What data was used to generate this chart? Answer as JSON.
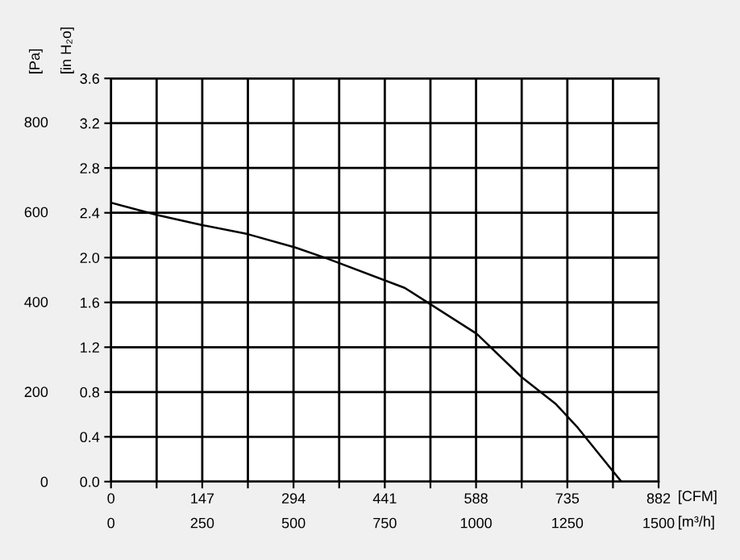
{
  "chart_data": {
    "type": "line",
    "xlabel": "[CFM]",
    "x2label": "[m³/h]",
    "ylabel": "[in H₂o]",
    "y2label": "[Pa]",
    "series": [
      {
        "color": "#000000",
        "x": [
          0,
          74.6,
          147,
          220,
          297,
          349,
          473,
          589,
          662,
          717,
          752,
          822
        ],
        "values": [
          2.49,
          2.38,
          2.29,
          2.21,
          2.09,
          1.99,
          1.73,
          1.32,
          0.93,
          0.69,
          0.48,
          0.0
        ]
      }
    ],
    "xlim": [
      0,
      882
    ],
    "xticks": [
      0,
      {
        "value": 73.5,
        "label": null
      },
      147,
      {
        "value": 220.5,
        "label": null
      },
      294,
      {
        "value": 367.5,
        "label": null
      },
      441,
      {
        "value": 514.5,
        "label": null
      },
      588,
      {
        "value": 661.5,
        "label": null
      },
      735,
      {
        "value": 808.5,
        "label": null
      },
      882
    ],
    "ylim": [
      0,
      3.6
    ],
    "yticks": [
      {
        "value": 0,
        "label": "0.0"
      },
      0.4,
      0.8,
      1.2,
      1.6,
      {
        "value": 2,
        "label": "2.0"
      },
      2.4,
      2.8,
      3.2,
      3.6
    ],
    "y2lim": [
      0,
      896.7
    ],
    "y2ticks": [
      0,
      200,
      400,
      600,
      800
    ],
    "x2lim": [
      0,
      1500
    ],
    "x2ticks": [
      0,
      250,
      500,
      750,
      1000,
      1250,
      1500
    ],
    "grid": true,
    "marker": "none",
    "line_style": "solid"
  }
}
